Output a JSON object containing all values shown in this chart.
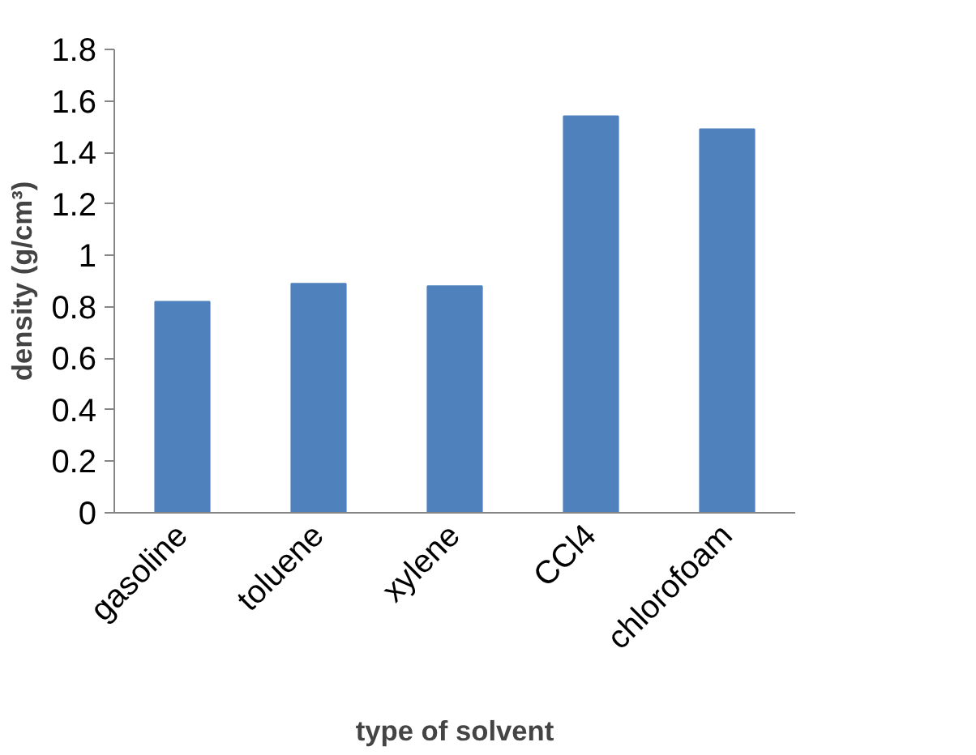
{
  "chart_data": {
    "type": "bar",
    "xlabel": "type of solvent",
    "ylabel": "density (g/cm³)",
    "categories": [
      "gasoline",
      "toluene",
      "xylene",
      "CCl4",
      "chlorofoam"
    ],
    "values": [
      0.82,
      0.89,
      0.88,
      1.54,
      1.49
    ],
    "color": "#4f81bd",
    "ylim": [
      0,
      1.8
    ],
    "yticks": [
      0,
      0.2,
      0.4,
      0.6,
      0.8,
      1,
      1.2,
      1.4,
      1.6,
      1.8
    ],
    "grid": false
  }
}
